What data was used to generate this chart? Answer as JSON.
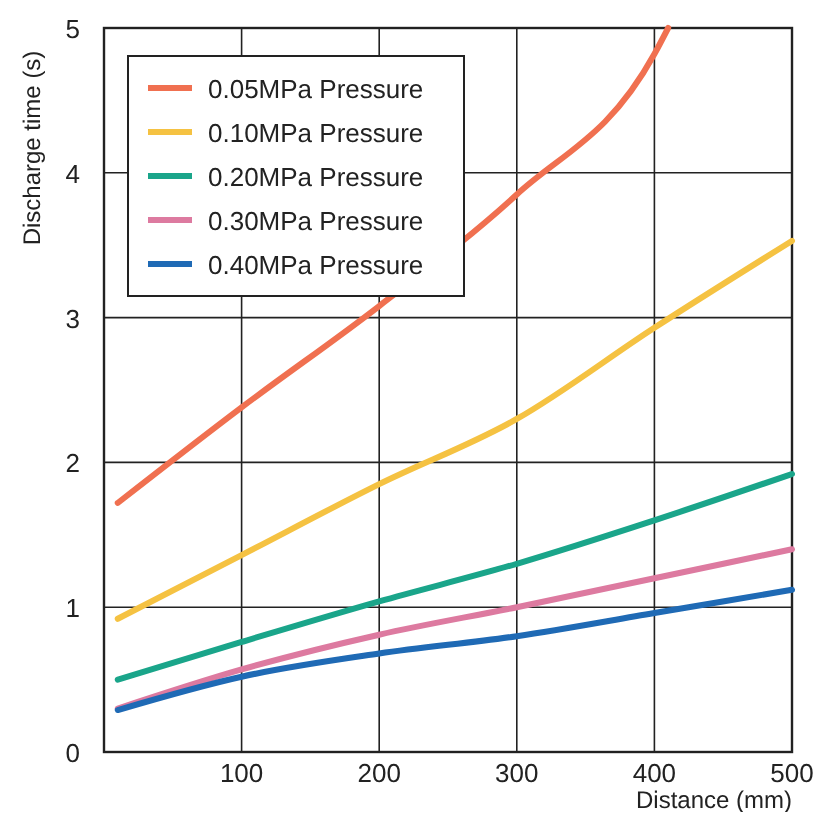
{
  "chart_data": {
    "type": "line",
    "xlabel": "Distance (mm)",
    "ylabel": "Discharge time (s)",
    "xlim": [
      0,
      500
    ],
    "ylim": [
      0,
      5
    ],
    "xticks": [
      100,
      200,
      300,
      400,
      500
    ],
    "yticks": [
      0,
      1,
      2,
      3,
      4,
      5
    ],
    "grid": true,
    "legend": "top left",
    "marker": "none",
    "line_style": "solid",
    "series": [
      {
        "name": "0.05MPa Pressure",
        "color": "#f07050",
        "x": [
          10,
          100,
          200,
          300,
          400,
          410
        ],
        "values": [
          1.72,
          2.38,
          3.08,
          3.85,
          4.82,
          5
        ]
      },
      {
        "name": "0.10MPa Pressure",
        "color": "#f5c242",
        "x": [
          10,
          100,
          200,
          300,
          400,
          500
        ],
        "values": [
          0.92,
          1.36,
          1.85,
          2.3,
          2.93,
          3.53
        ]
      },
      {
        "name": "0.20MPa Pressure",
        "color": "#1aa58a",
        "x": [
          10,
          100,
          200,
          300,
          400,
          500
        ],
        "values": [
          0.5,
          0.76,
          1.04,
          1.3,
          1.6,
          1.92
        ]
      },
      {
        "name": "0.30MPa Pressure",
        "color": "#dd7aa0",
        "x": [
          10,
          100,
          200,
          300,
          400,
          500
        ],
        "values": [
          0.3,
          0.57,
          0.81,
          1.0,
          1.2,
          1.4
        ]
      },
      {
        "name": "0.40MPa Pressure",
        "color": "#1f6ab5",
        "x": [
          10,
          100,
          200,
          300,
          400,
          500
        ],
        "values": [
          0.29,
          0.52,
          0.68,
          0.8,
          0.96,
          1.12
        ]
      }
    ]
  }
}
